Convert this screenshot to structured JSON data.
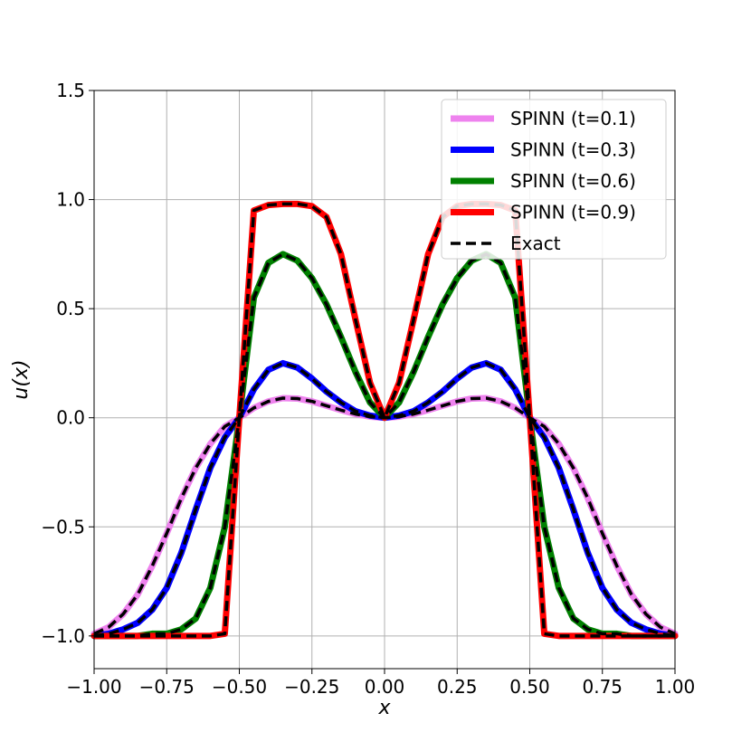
{
  "chart_data": {
    "type": "line",
    "xlabel": "x",
    "ylabel": "u(x)",
    "xlim": [
      -1.0,
      1.0
    ],
    "ylim": [
      -1.15,
      1.5
    ],
    "grid": true,
    "legend_position": "top-right",
    "x_ticks": [
      "−1.00",
      "−0.75",
      "−0.50",
      "−0.25",
      "0.00",
      "0.25",
      "0.50",
      "0.75",
      "1.00"
    ],
    "y_ticks": [
      "−1.0",
      "−0.5",
      "0.0",
      "0.5",
      "1.0",
      "1.5"
    ],
    "x": [
      -1.0,
      -0.95,
      -0.9,
      -0.85,
      -0.8,
      -0.75,
      -0.7,
      -0.65,
      -0.6,
      -0.55,
      -0.5,
      -0.45,
      -0.4,
      -0.35,
      -0.3,
      -0.25,
      -0.2,
      -0.15,
      -0.1,
      -0.05,
      0.0,
      0.05,
      0.1,
      0.15,
      0.2,
      0.25,
      0.3,
      0.35,
      0.4,
      0.45,
      0.5,
      0.55,
      0.6,
      0.65,
      0.7,
      0.75,
      0.8,
      0.85,
      0.9,
      0.95,
      1.0
    ],
    "series": [
      {
        "name": "SPINN (t=0.1)",
        "color": "#ee82ee",
        "values": [
          -0.99,
          -0.96,
          -0.9,
          -0.81,
          -0.68,
          -0.53,
          -0.37,
          -0.23,
          -0.12,
          -0.04,
          0.0,
          0.045,
          0.075,
          0.09,
          0.088,
          0.075,
          0.055,
          0.035,
          0.017,
          0.005,
          0.0,
          0.005,
          0.017,
          0.035,
          0.055,
          0.075,
          0.088,
          0.09,
          0.075,
          0.045,
          0.0,
          -0.04,
          -0.12,
          -0.23,
          -0.37,
          -0.53,
          -0.68,
          -0.81,
          -0.9,
          -0.96,
          -0.99
        ]
      },
      {
        "name": "SPINN (t=0.3)",
        "color": "#0000ff",
        "values": [
          -1.0,
          -0.99,
          -0.97,
          -0.94,
          -0.88,
          -0.78,
          -0.62,
          -0.42,
          -0.23,
          -0.09,
          0.0,
          0.13,
          0.22,
          0.25,
          0.23,
          0.18,
          0.12,
          0.07,
          0.03,
          0.01,
          0.0,
          0.01,
          0.03,
          0.07,
          0.12,
          0.18,
          0.23,
          0.25,
          0.22,
          0.13,
          0.0,
          -0.09,
          -0.23,
          -0.42,
          -0.62,
          -0.78,
          -0.88,
          -0.94,
          -0.97,
          -0.99,
          -1.0
        ]
      },
      {
        "name": "SPINN (t=0.6)",
        "color": "#008000",
        "values": [
          -1.0,
          -1.0,
          -1.0,
          -1.0,
          -0.99,
          -0.99,
          -0.97,
          -0.92,
          -0.78,
          -0.5,
          0.0,
          0.55,
          0.71,
          0.75,
          0.72,
          0.64,
          0.52,
          0.37,
          0.21,
          0.07,
          0.0,
          0.07,
          0.21,
          0.37,
          0.52,
          0.64,
          0.72,
          0.75,
          0.71,
          0.55,
          0.0,
          -0.5,
          -0.78,
          -0.92,
          -0.97,
          -0.99,
          -0.99,
          -1.0,
          -1.0,
          -1.0,
          -1.0
        ]
      },
      {
        "name": "SPINN (t=0.9)",
        "color": "#ff0000",
        "values": [
          -1.0,
          -1.0,
          -1.0,
          -1.0,
          -1.0,
          -1.0,
          -1.0,
          -1.0,
          -1.0,
          -0.99,
          0.0,
          0.95,
          0.975,
          0.98,
          0.98,
          0.97,
          0.92,
          0.75,
          0.45,
          0.16,
          0.0,
          0.16,
          0.45,
          0.75,
          0.92,
          0.97,
          0.98,
          0.98,
          0.975,
          0.95,
          0.0,
          -0.99,
          -1.0,
          -1.0,
          -1.0,
          -1.0,
          -1.0,
          -1.0,
          -1.0,
          -1.0,
          -1.0
        ]
      }
    ],
    "exact_label": "Exact",
    "exact_color": "#000000"
  }
}
